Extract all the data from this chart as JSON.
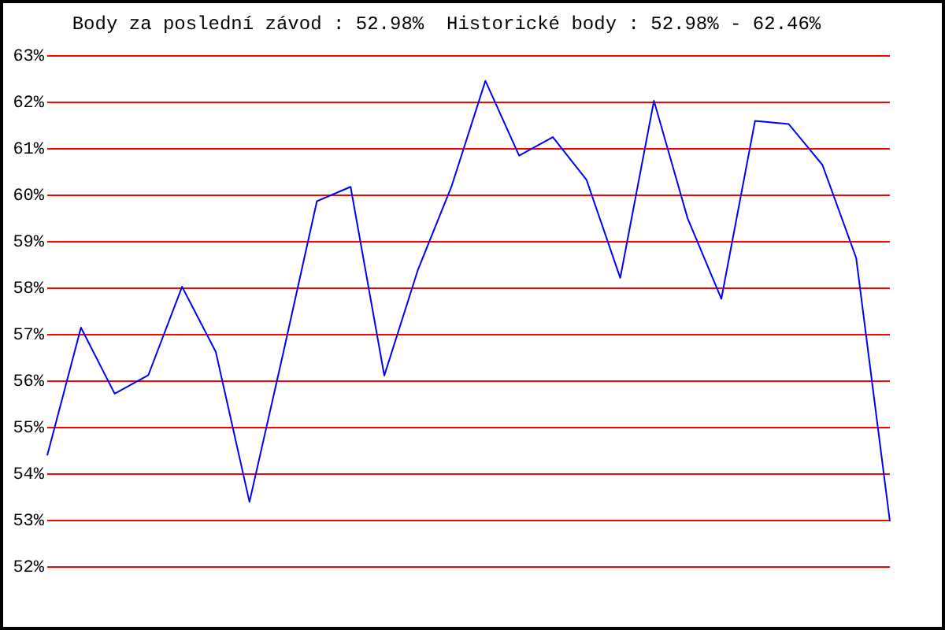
{
  "chart_data": {
    "type": "line",
    "title": "Body za poslední závod : 52.98%  Historické body : 52.98% - 62.46%",
    "categories": [
      null,
      null,
      null,
      null,
      null,
      null,
      null,
      null,
      null,
      null,
      null,
      null,
      null,
      null,
      null,
      null,
      null,
      null,
      null,
      null,
      null,
      null,
      null,
      null,
      null,
      null
    ],
    "series": [
      {
        "color": "#0000ff",
        "values": [
          54.4,
          57.15,
          55.73,
          56.13,
          58.03,
          56.63,
          53.4,
          56.6,
          59.87,
          60.18,
          56.12,
          58.4,
          60.2,
          62.46,
          60.85,
          61.25,
          60.33,
          58.22,
          62.03,
          59.5,
          57.77,
          61.6,
          61.53,
          60.65,
          58.65,
          52.98
        ]
      }
    ],
    "ylim": [
      52,
      63
    ],
    "yticks": [
      {
        "value": 52,
        "label": "52%"
      },
      {
        "value": 53,
        "label": "53%"
      },
      {
        "value": 54,
        "label": "54%"
      },
      {
        "value": 55,
        "label": "55%"
      },
      {
        "value": 56,
        "label": "56%"
      },
      {
        "value": 57,
        "label": "57%"
      },
      {
        "value": 58,
        "label": "58%"
      },
      {
        "value": 59,
        "label": "59%"
      },
      {
        "value": 60,
        "label": "60%"
      },
      {
        "value": 61,
        "label": "61%"
      },
      {
        "value": 62,
        "label": "62%"
      },
      {
        "value": 63,
        "label": "63%"
      }
    ],
    "grid": "y",
    "legend": false,
    "tick_labels": "y",
    "marker": "none",
    "line_style": "solid"
  }
}
